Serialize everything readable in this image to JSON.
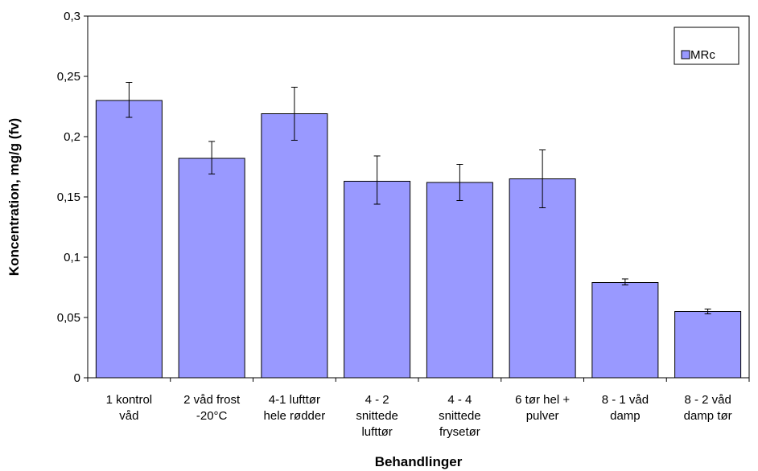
{
  "chart_data": {
    "type": "bar",
    "xlabel": "Behandlinger",
    "ylabel": "Koncentration, mg/g (fv)",
    "ylim": [
      0,
      0.3
    ],
    "yticks": [
      0,
      0.05,
      0.1,
      0.15,
      0.2,
      0.25,
      0.3
    ],
    "ytick_labels": [
      "0",
      "0,05",
      "0,1",
      "0,15",
      "0,2",
      "0,25",
      "0,3"
    ],
    "categories": [
      [
        "1 kontrol",
        "våd"
      ],
      [
        "2 våd frost",
        "-20°C"
      ],
      [
        "4-1 lufttør",
        "hele rødder"
      ],
      [
        "4 - 2",
        "snittede",
        "lufttør"
      ],
      [
        "4 - 4",
        "snittede",
        "frysetør"
      ],
      [
        "6 tør hel +",
        "pulver"
      ],
      [
        "8 - 1 våd",
        "damp"
      ],
      [
        "8 - 2 våd",
        "damp tør"
      ]
    ],
    "series": [
      {
        "name": "MRc",
        "color": "#9999ff",
        "values": [
          0.23,
          0.182,
          0.219,
          0.163,
          0.162,
          0.165,
          0.079,
          0.055
        ],
        "error_low": [
          0.216,
          0.169,
          0.197,
          0.144,
          0.147,
          0.141,
          0.077,
          0.053
        ],
        "error_high": [
          0.245,
          0.196,
          0.241,
          0.184,
          0.177,
          0.189,
          0.082,
          0.057
        ]
      }
    ],
    "legend_position": "top-right",
    "grid": false
  }
}
